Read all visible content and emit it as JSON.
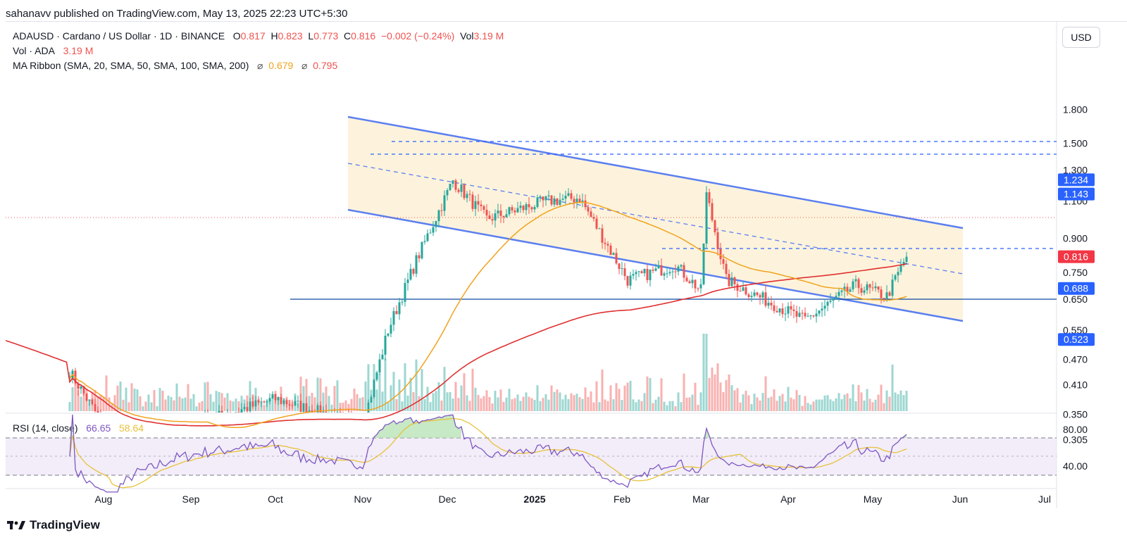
{
  "published": "sahanavv published on TradingView.com, May 13, 2025 22:23 UTC+5:30",
  "symbol": {
    "name": "ADAUSD · Cardano / US Dollar · 1D · BINANCE",
    "o_label": "O",
    "o": "0.817",
    "h_label": "H",
    "h": "0.823",
    "l_label": "L",
    "l": "0.773",
    "c_label": "C",
    "c": "0.816",
    "change": "−0.002 (−0.24%)",
    "vol_label": "Vol",
    "vol": "3.19 M"
  },
  "vol_legend": {
    "label": "Vol · ADA",
    "value": "3.19 M"
  },
  "ma_legend": {
    "label": "MA Ribbon (SMA, 20, SMA, 50, SMA, 100, SMA, 200)",
    "v1": "0.679",
    "v2": "0.795"
  },
  "rsi_legend": {
    "label": "RSI (14, close)",
    "v1": "66.65",
    "v2": "58.64"
  },
  "currency_button": "USD",
  "brand": "TradingView",
  "colors": {
    "up": "#26a69a",
    "down": "#ef5350",
    "channel": "#5b7ff0",
    "ma_fast": "#f0a31e",
    "ma_slow": "#e03030",
    "rsi": "#7e57c2",
    "rsi_ma": "#e8c13a",
    "tag_blue": "#2962ff",
    "tag_red": "#f23645",
    "support": "#0d47a1"
  },
  "chart_data": {
    "type": "candlestick",
    "price_axis_ticks": [
      "1.800",
      "1.500",
      "1.300",
      "1.100",
      "0.900",
      "0.750",
      "0.650",
      "0.550",
      "0.470",
      "0.410",
      "0.350",
      "0.305"
    ],
    "price_tags": [
      {
        "value": "1.234",
        "color": "blue"
      },
      {
        "value": "1.143",
        "color": "blue"
      },
      {
        "value": "0.816",
        "color": "red"
      },
      {
        "value": "0.688",
        "color": "blue"
      },
      {
        "value": "0.523",
        "color": "blue"
      }
    ],
    "rsi_axis_ticks": [
      "80.00",
      "40.00"
    ],
    "x_axis_ticks": [
      "Aug",
      "Sep",
      "Oct",
      "Nov",
      "Dec",
      "2025",
      "Feb",
      "Mar",
      "Apr",
      "May",
      "Jun",
      "Jul"
    ],
    "horizontal_levels": [
      1.234,
      1.143,
      0.816,
      0.688,
      0.523
    ],
    "ohlc_keypoints": [
      {
        "date": "2024-07-20",
        "close": 0.44
      },
      {
        "date": "2024-08-05",
        "close": 0.3
      },
      {
        "date": "2024-09-01",
        "close": 0.33
      },
      {
        "date": "2024-10-01",
        "close": 0.38
      },
      {
        "date": "2024-11-01",
        "close": 0.33
      },
      {
        "date": "2024-11-10",
        "close": 0.55
      },
      {
        "date": "2024-11-20",
        "close": 0.8
      },
      {
        "date": "2024-12-03",
        "close": 1.23
      },
      {
        "date": "2024-12-15",
        "close": 1.0
      },
      {
        "date": "2025-01-05",
        "close": 1.1
      },
      {
        "date": "2025-01-17",
        "close": 1.12
      },
      {
        "date": "2025-02-03",
        "close": 0.72
      },
      {
        "date": "2025-02-20",
        "close": 0.78
      },
      {
        "date": "2025-03-01",
        "close": 0.68
      },
      {
        "date": "2025-03-03",
        "close": 1.14
      },
      {
        "date": "2025-03-10",
        "close": 0.72
      },
      {
        "date": "2025-04-07",
        "close": 0.58
      },
      {
        "date": "2025-04-25",
        "close": 0.7
      },
      {
        "date": "2025-05-06",
        "close": 0.66
      },
      {
        "date": "2025-05-13",
        "close": 0.816
      }
    ]
  }
}
